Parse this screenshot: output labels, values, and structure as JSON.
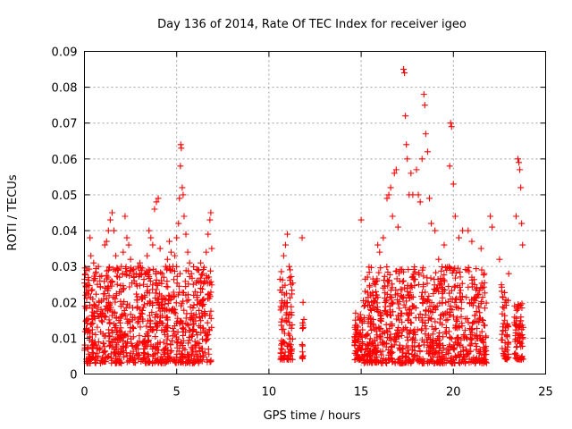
{
  "chart_data": {
    "type": "scatter",
    "title": "Day 136 of 2014, Rate Of TEC Index for receiver igeo",
    "xlabel": "GPS time / hours",
    "ylabel": "ROTI / TECUs",
    "xlim": [
      0,
      25
    ],
    "ylim": [
      0,
      0.09
    ],
    "xticks": [
      0,
      5,
      10,
      15,
      20,
      25
    ],
    "xtick_labels": [
      "0",
      "5",
      "10",
      "15",
      "20",
      "25"
    ],
    "yticks": [
      0,
      0.01,
      0.02,
      0.03,
      0.04,
      0.05,
      0.06,
      0.07,
      0.08,
      0.09
    ],
    "ytick_labels": [
      "0",
      "0.01",
      "0.02",
      "0.03",
      "0.04",
      "0.05",
      "0.06",
      "0.07",
      "0.08",
      "0.09"
    ],
    "grid": true,
    "marker": "+",
    "color": "#ff0000",
    "series": [
      {
        "points": [
          [
            0.05,
            0.022
          ],
          [
            0.1,
            0.015
          ],
          [
            0.2,
            0.012
          ],
          [
            0.3,
            0.038
          ],
          [
            0.35,
            0.033
          ],
          [
            0.4,
            0.009
          ],
          [
            0.5,
            0.031
          ],
          [
            0.6,
            0.028
          ],
          [
            0.7,
            0.025
          ],
          [
            0.8,
            0.02
          ],
          [
            0.9,
            0.018
          ],
          [
            1.0,
            0.017
          ],
          [
            1.1,
            0.036
          ],
          [
            1.2,
            0.037
          ],
          [
            1.3,
            0.04
          ],
          [
            1.4,
            0.043
          ],
          [
            1.5,
            0.045
          ],
          [
            1.6,
            0.04
          ],
          [
            1.7,
            0.033
          ],
          [
            1.8,
            0.029
          ],
          [
            1.9,
            0.027
          ],
          [
            2.0,
            0.03
          ],
          [
            2.1,
            0.034
          ],
          [
            2.2,
            0.044
          ],
          [
            2.3,
            0.038
          ],
          [
            2.4,
            0.036
          ],
          [
            2.5,
            0.032
          ],
          [
            2.6,
            0.029
          ],
          [
            2.7,
            0.026
          ],
          [
            2.8,
            0.028
          ],
          [
            2.9,
            0.03
          ],
          [
            3.0,
            0.031
          ],
          [
            3.1,
            0.029
          ],
          [
            3.2,
            0.025
          ],
          [
            3.3,
            0.028
          ],
          [
            3.4,
            0.033
          ],
          [
            3.5,
            0.04
          ],
          [
            3.6,
            0.038
          ],
          [
            3.7,
            0.036
          ],
          [
            3.8,
            0.046
          ],
          [
            3.9,
            0.048
          ],
          [
            4.0,
            0.049
          ],
          [
            4.1,
            0.035
          ],
          [
            4.2,
            0.028
          ],
          [
            4.3,
            0.027
          ],
          [
            4.4,
            0.03
          ],
          [
            4.5,
            0.032
          ],
          [
            4.6,
            0.037
          ],
          [
            4.7,
            0.034
          ],
          [
            4.8,
            0.03
          ],
          [
            4.9,
            0.033
          ],
          [
            5.0,
            0.038
          ],
          [
            5.1,
            0.042
          ],
          [
            5.15,
            0.049
          ],
          [
            5.2,
            0.058
          ],
          [
            5.22,
            0.064
          ],
          [
            5.25,
            0.063
          ],
          [
            5.3,
            0.052
          ],
          [
            5.35,
            0.05
          ],
          [
            5.4,
            0.044
          ],
          [
            5.5,
            0.039
          ],
          [
            5.6,
            0.034
          ],
          [
            5.7,
            0.031
          ],
          [
            5.8,
            0.028
          ],
          [
            5.9,
            0.025
          ],
          [
            6.0,
            0.023
          ],
          [
            6.1,
            0.026
          ],
          [
            6.2,
            0.029
          ],
          [
            6.3,
            0.031
          ],
          [
            6.4,
            0.028
          ],
          [
            6.5,
            0.026
          ],
          [
            6.6,
            0.034
          ],
          [
            6.7,
            0.039
          ],
          [
            6.8,
            0.043
          ],
          [
            6.85,
            0.045
          ],
          [
            6.9,
            0.035
          ],
          [
            10.8,
            0.033
          ],
          [
            10.9,
            0.036
          ],
          [
            11.0,
            0.039
          ],
          [
            11.1,
            0.03
          ],
          [
            11.2,
            0.025
          ],
          [
            11.8,
            0.038
          ],
          [
            11.85,
            0.02
          ],
          [
            14.7,
            0.017
          ],
          [
            15.0,
            0.043
          ],
          [
            15.5,
            0.018
          ],
          [
            15.9,
            0.036
          ],
          [
            16.0,
            0.034
          ],
          [
            16.2,
            0.038
          ],
          [
            16.4,
            0.049
          ],
          [
            16.5,
            0.05
          ],
          [
            16.6,
            0.052
          ],
          [
            16.7,
            0.044
          ],
          [
            16.8,
            0.056
          ],
          [
            16.9,
            0.057
          ],
          [
            17.0,
            0.041
          ],
          [
            17.3,
            0.085
          ],
          [
            17.35,
            0.084
          ],
          [
            17.4,
            0.072
          ],
          [
            17.45,
            0.064
          ],
          [
            17.5,
            0.06
          ],
          [
            17.6,
            0.05
          ],
          [
            17.7,
            0.056
          ],
          [
            17.8,
            0.05
          ],
          [
            18.0,
            0.057
          ],
          [
            18.1,
            0.05
          ],
          [
            18.2,
            0.048
          ],
          [
            18.3,
            0.06
          ],
          [
            18.4,
            0.078
          ],
          [
            18.45,
            0.075
          ],
          [
            18.5,
            0.067
          ],
          [
            18.6,
            0.062
          ],
          [
            18.7,
            0.049
          ],
          [
            18.8,
            0.042
          ],
          [
            19.0,
            0.04
          ],
          [
            19.2,
            0.032
          ],
          [
            19.5,
            0.036
          ],
          [
            19.8,
            0.058
          ],
          [
            19.85,
            0.07
          ],
          [
            19.9,
            0.069
          ],
          [
            20.0,
            0.053
          ],
          [
            20.1,
            0.044
          ],
          [
            20.3,
            0.038
          ],
          [
            20.5,
            0.04
          ],
          [
            20.8,
            0.04
          ],
          [
            21.0,
            0.037
          ],
          [
            21.5,
            0.035
          ],
          [
            22.0,
            0.044
          ],
          [
            22.1,
            0.041
          ],
          [
            22.5,
            0.032
          ],
          [
            23.0,
            0.028
          ],
          [
            23.4,
            0.044
          ],
          [
            23.5,
            0.06
          ],
          [
            23.55,
            0.059
          ],
          [
            23.6,
            0.057
          ],
          [
            23.65,
            0.052
          ],
          [
            23.7,
            0.042
          ],
          [
            23.75,
            0.036
          ]
        ]
      }
    ],
    "dense_bands": [
      {
        "x_range": [
          0.0,
          6.9
        ],
        "y_range": [
          0.003,
          0.03
        ]
      },
      {
        "x_range": [
          10.6,
          11.3
        ],
        "y_range": [
          0.004,
          0.03
        ]
      },
      {
        "x_range": [
          11.8,
          11.9
        ],
        "y_range": [
          0.004,
          0.018
        ]
      },
      {
        "x_range": [
          14.6,
          15.1
        ],
        "y_range": [
          0.004,
          0.017
        ]
      },
      {
        "x_range": [
          15.1,
          21.8
        ],
        "y_range": [
          0.003,
          0.03
        ]
      },
      {
        "x_range": [
          22.6,
          23.0
        ],
        "y_range": [
          0.004,
          0.025
        ]
      },
      {
        "x_range": [
          23.3,
          23.8
        ],
        "y_range": [
          0.004,
          0.02
        ]
      }
    ]
  }
}
